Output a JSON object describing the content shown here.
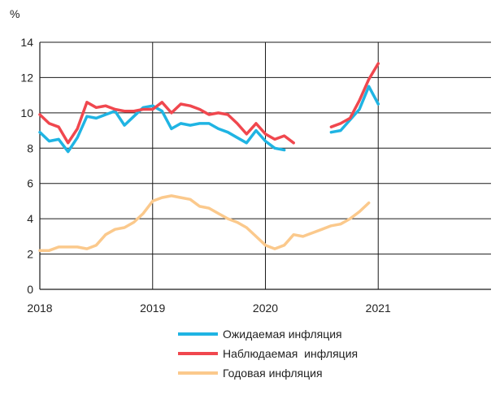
{
  "chart_data": {
    "type": "line",
    "ylabel": "%",
    "ylim": [
      0,
      14
    ],
    "yticks": [
      0,
      2,
      4,
      6,
      8,
      10,
      12,
      14
    ],
    "xlim": [
      2018,
      2022
    ],
    "xticks": [
      2018,
      2019,
      2020,
      2021
    ],
    "xtick_labels": [
      "2018",
      "2019",
      "2020",
      "2021"
    ],
    "legend_position": "bottom",
    "grid": "vertical at year ticks, horizontal at y ticks",
    "series": [
      {
        "name": "Ожидаемая инфляция",
        "color": "#1fb4e3",
        "segments": [
          [
            [
              2018.0,
              8.9
            ],
            [
              2018.083,
              8.4
            ],
            [
              2018.167,
              8.5
            ],
            [
              2018.25,
              7.8
            ],
            [
              2018.333,
              8.6
            ],
            [
              2018.417,
              9.8
            ],
            [
              2018.5,
              9.7
            ],
            [
              2018.583,
              9.9
            ],
            [
              2018.667,
              10.1
            ],
            [
              2018.75,
              9.3
            ],
            [
              2018.833,
              9.8
            ],
            [
              2018.917,
              10.3
            ],
            [
              2019.0,
              10.4
            ],
            [
              2019.083,
              10.1
            ],
            [
              2019.167,
              9.1
            ],
            [
              2019.25,
              9.4
            ],
            [
              2019.333,
              9.3
            ],
            [
              2019.417,
              9.4
            ],
            [
              2019.5,
              9.4
            ],
            [
              2019.583,
              9.1
            ],
            [
              2019.667,
              8.9
            ],
            [
              2019.75,
              8.6
            ],
            [
              2019.833,
              8.3
            ],
            [
              2019.917,
              9.0
            ],
            [
              2020.0,
              8.4
            ],
            [
              2020.083,
              8.0
            ],
            [
              2020.167,
              7.9
            ]
          ],
          [
            [
              2020.583,
              8.9
            ],
            [
              2020.667,
              9.0
            ],
            [
              2020.75,
              9.6
            ],
            [
              2020.833,
              10.2
            ],
            [
              2020.917,
              11.5
            ],
            [
              2021.0,
              10.5
            ]
          ]
        ]
      },
      {
        "name": "Наблюдаемая  инфляция",
        "color": "#f0474e",
        "segments": [
          [
            [
              2018.0,
              9.9
            ],
            [
              2018.083,
              9.4
            ],
            [
              2018.167,
              9.2
            ],
            [
              2018.25,
              8.3
            ],
            [
              2018.333,
              9.1
            ],
            [
              2018.417,
              10.6
            ],
            [
              2018.5,
              10.3
            ],
            [
              2018.583,
              10.4
            ],
            [
              2018.667,
              10.2
            ],
            [
              2018.75,
              10.1
            ],
            [
              2018.833,
              10.1
            ],
            [
              2018.917,
              10.2
            ],
            [
              2019.0,
              10.2
            ],
            [
              2019.083,
              10.6
            ],
            [
              2019.167,
              10.0
            ],
            [
              2019.25,
              10.5
            ],
            [
              2019.333,
              10.4
            ],
            [
              2019.417,
              10.2
            ],
            [
              2019.5,
              9.9
            ],
            [
              2019.583,
              10.0
            ],
            [
              2019.667,
              9.9
            ],
            [
              2019.75,
              9.4
            ],
            [
              2019.833,
              8.8
            ],
            [
              2019.917,
              9.4
            ],
            [
              2020.0,
              8.8
            ],
            [
              2020.083,
              8.5
            ],
            [
              2020.167,
              8.7
            ],
            [
              2020.25,
              8.3
            ]
          ],
          [
            [
              2020.583,
              9.2
            ],
            [
              2020.667,
              9.4
            ],
            [
              2020.75,
              9.7
            ],
            [
              2020.833,
              10.7
            ],
            [
              2020.917,
              11.9
            ],
            [
              2021.0,
              12.8
            ]
          ]
        ]
      },
      {
        "name": "Годовая инфляция",
        "color": "#fbc98c",
        "segments": [
          [
            [
              2018.0,
              2.2
            ],
            [
              2018.083,
              2.2
            ],
            [
              2018.167,
              2.4
            ],
            [
              2018.25,
              2.4
            ],
            [
              2018.333,
              2.4
            ],
            [
              2018.417,
              2.3
            ],
            [
              2018.5,
              2.5
            ],
            [
              2018.583,
              3.1
            ],
            [
              2018.667,
              3.4
            ],
            [
              2018.75,
              3.5
            ],
            [
              2018.833,
              3.8
            ],
            [
              2018.917,
              4.3
            ],
            [
              2019.0,
              5.0
            ],
            [
              2019.083,
              5.2
            ],
            [
              2019.167,
              5.3
            ],
            [
              2019.25,
              5.2
            ],
            [
              2019.333,
              5.1
            ],
            [
              2019.417,
              4.7
            ],
            [
              2019.5,
              4.6
            ],
            [
              2019.583,
              4.3
            ],
            [
              2019.667,
              4.0
            ],
            [
              2019.75,
              3.8
            ],
            [
              2019.833,
              3.5
            ],
            [
              2019.917,
              3.0
            ],
            [
              2020.0,
              2.5
            ],
            [
              2020.083,
              2.3
            ],
            [
              2020.167,
              2.5
            ],
            [
              2020.25,
              3.1
            ],
            [
              2020.333,
              3.0
            ],
            [
              2020.417,
              3.2
            ],
            [
              2020.5,
              3.4
            ],
            [
              2020.583,
              3.6
            ],
            [
              2020.667,
              3.7
            ],
            [
              2020.75,
              4.0
            ],
            [
              2020.833,
              4.4
            ],
            [
              2020.917,
              4.9
            ]
          ]
        ]
      }
    ]
  }
}
